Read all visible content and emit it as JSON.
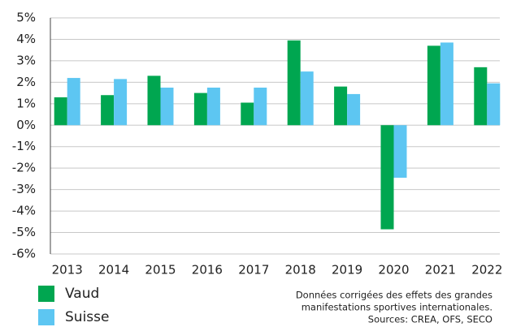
{
  "chart_data": {
    "type": "bar",
    "categories": [
      "2013",
      "2014",
      "2015",
      "2016",
      "2017",
      "2018",
      "2019",
      "2020",
      "2021",
      "2022"
    ],
    "series": [
      {
        "name": "Vaud",
        "color": "#00a650",
        "values": [
          1.3,
          1.4,
          2.3,
          1.5,
          1.05,
          3.95,
          1.8,
          -4.85,
          3.7,
          2.7
        ]
      },
      {
        "name": "Suisse",
        "color": "#5dc6f2",
        "values": [
          2.2,
          2.15,
          1.75,
          1.75,
          1.75,
          2.5,
          1.45,
          -2.45,
          3.85,
          1.95
        ]
      }
    ],
    "ylim": [
      -6,
      5
    ],
    "yticks": [
      {
        "value": -6,
        "label": "-6%"
      },
      {
        "value": -5,
        "label": "-5%"
      },
      {
        "value": -4,
        "label": "-4%"
      },
      {
        "value": -3,
        "label": "-3%"
      },
      {
        "value": -2,
        "label": "-2%"
      },
      {
        "value": -1,
        "label": "-1%"
      },
      {
        "value": 0,
        "label": "0%"
      },
      {
        "value": 1,
        "label": "1%"
      },
      {
        "value": 2,
        "label": "2%"
      },
      {
        "value": 3,
        "label": "3%"
      },
      {
        "value": 4,
        "label": "4%"
      },
      {
        "value": 5,
        "label": "5%"
      }
    ],
    "grid": true,
    "annotations": [
      "Données corrigées des effets des grandes",
      "manifestations sportives internationales.",
      "Sources: CREA, OFS, SECO"
    ]
  }
}
